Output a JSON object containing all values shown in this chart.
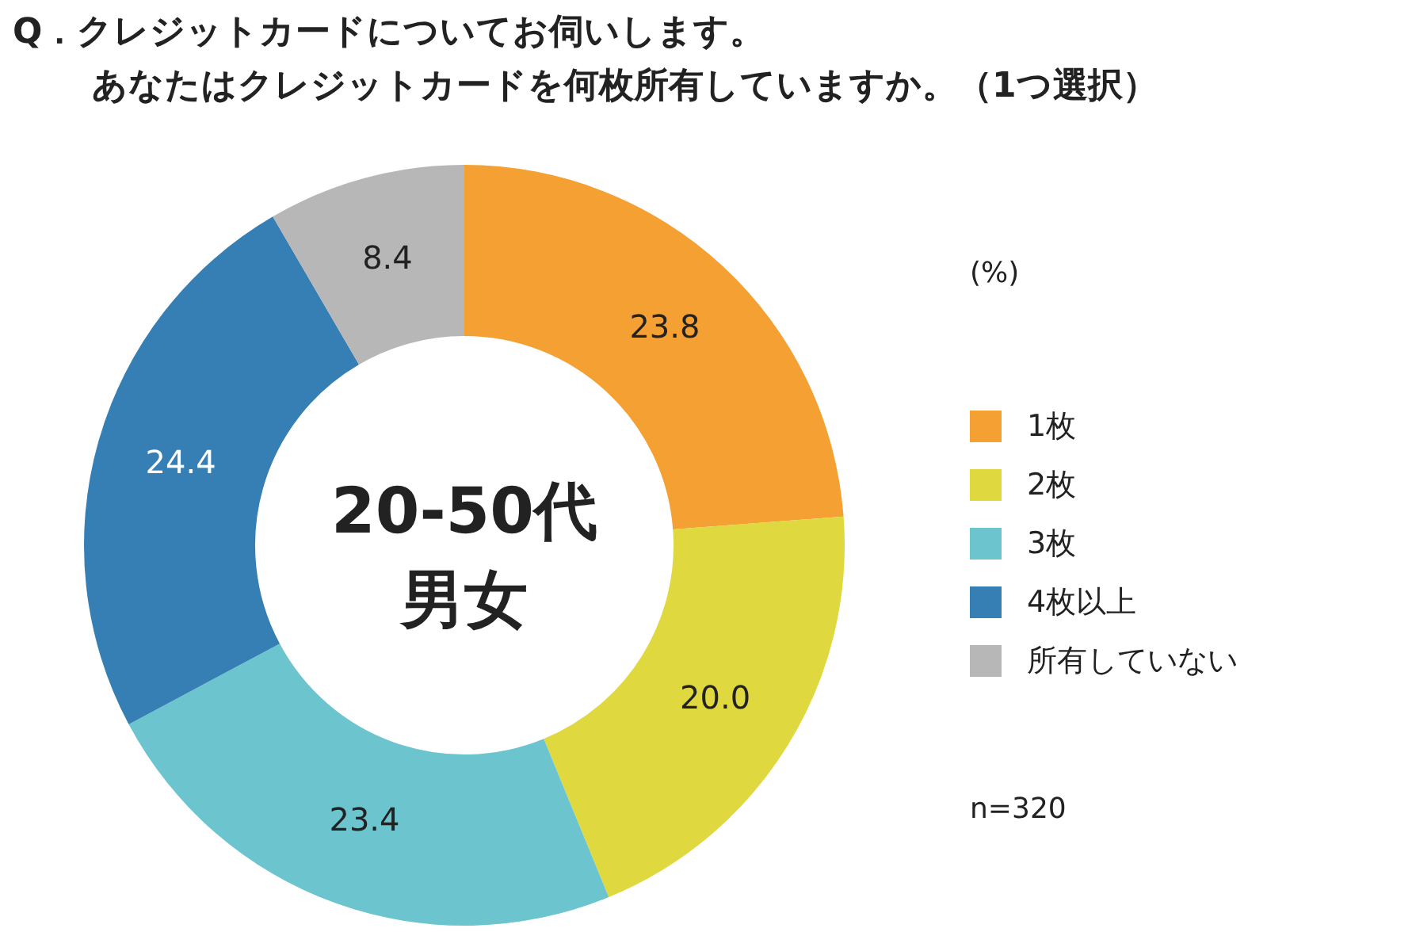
{
  "chart_data": {
    "type": "donut",
    "title": "Q．クレジットカードについてお伺いします。",
    "subtitle": "あなたはクレジットカードを何枚所有していますか。（1つ選択）",
    "categories": [
      "1枚",
      "2枚",
      "3枚",
      "4枚以上",
      "所有していない"
    ],
    "values": [
      23.8,
      20.0,
      23.4,
      24.4,
      8.4
    ],
    "value_labels": [
      "23.8",
      "20.0",
      "23.4",
      "24.4",
      "8.4"
    ],
    "colors": [
      "#f5a033",
      "#dfd83f",
      "#6cc4cf",
      "#357fb5",
      "#b7b7b7"
    ],
    "legend": "right",
    "annotations": [
      "20-50代",
      "男女",
      "(%)",
      "n=320"
    ]
  }
}
